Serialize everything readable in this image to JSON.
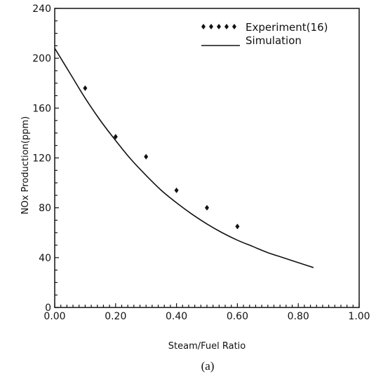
{
  "chart_data": {
    "type": "line",
    "title": "",
    "xlabel": "Steam/Fuel Ratio",
    "ylabel": "NOx Production(ppm)",
    "xlim": [
      0,
      1.0
    ],
    "ylim": [
      0,
      240
    ],
    "x_tick_labels": [
      "0.00",
      "0.20",
      "0.40",
      "0.60",
      "0.80",
      "1.00"
    ],
    "x_tick_values": [
      0,
      0.2,
      0.4,
      0.6,
      0.8,
      1.0
    ],
    "y_tick_labels": [
      "0",
      "40",
      "80",
      "120",
      "160",
      "200",
      "240"
    ],
    "y_tick_values": [
      0,
      40,
      80,
      120,
      160,
      200,
      240
    ],
    "grid": false,
    "legend_position": "top-right",
    "series": [
      {
        "name": "Experiment(16)",
        "kind": "scatter",
        "marker": "diamond",
        "x": [
          0.1,
          0.2,
          0.3,
          0.4,
          0.5,
          0.6
        ],
        "y": [
          176,
          137,
          121,
          94,
          80,
          65
        ]
      },
      {
        "name": "Simulation",
        "kind": "line",
        "x": [
          0.0,
          0.05,
          0.1,
          0.15,
          0.2,
          0.25,
          0.3,
          0.35,
          0.4,
          0.45,
          0.5,
          0.55,
          0.6,
          0.65,
          0.7,
          0.75,
          0.8,
          0.85
        ],
        "y": [
          208,
          188,
          168,
          150,
          134,
          119,
          106,
          94,
          84,
          75,
          67,
          60,
          54,
          49,
          44,
          40,
          36,
          32
        ]
      }
    ]
  },
  "caption": "(a)"
}
